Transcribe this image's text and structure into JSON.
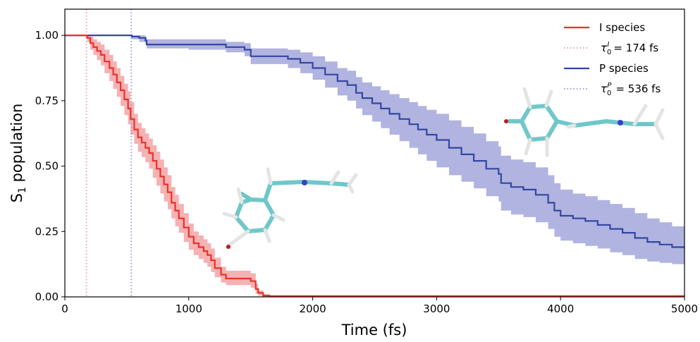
{
  "chart_data": {
    "type": "line",
    "xlabel": "Time (fs)",
    "ylabel_main": "S",
    "ylabel_sub": "1",
    "ylabel_rest": " population",
    "xlim": [
      0,
      5000
    ],
    "ylim": [
      0,
      1.1
    ],
    "xticks": [
      0,
      1000,
      2000,
      3000,
      4000,
      5000
    ],
    "xtick_labels": [
      "0",
      "1000",
      "2000",
      "3000",
      "4000",
      "5000"
    ],
    "yticks": [
      0,
      0.25,
      0.5,
      0.75,
      1.0
    ],
    "ytick_labels": [
      "0.00",
      "0.25",
      "0.50",
      "0.75",
      "1.00"
    ],
    "grid": false,
    "legend_position": "top-right",
    "colors": {
      "i_line": "#e8322a",
      "i_band": "#f4a3a6",
      "i_tau": "#f2a0a0",
      "p_line": "#3447a2",
      "p_band": "#a3a7da",
      "p_tau": "#9a9ede"
    },
    "legend": {
      "i_species": "I species",
      "tau_i_label": "= 174 fs",
      "p_species": "P species",
      "tau_p_label": "= 536 fs"
    },
    "tau_lines": {
      "i": 174,
      "p": 536
    },
    "series": [
      {
        "name": "I species",
        "key": "i",
        "x": [
          0,
          170,
          180,
          205,
          230,
          260,
          290,
          320,
          360,
          390,
          420,
          450,
          480,
          510,
          530,
          560,
          590,
          620,
          650,
          680,
          710,
          740,
          770,
          800,
          830,
          860,
          890,
          920,
          960,
          1000,
          1040,
          1080,
          1120,
          1150,
          1180,
          1210,
          1260,
          1300,
          1400,
          1500,
          1540,
          1560,
          1600,
          1650,
          2000,
          3000,
          4000,
          5000
        ],
        "y": [
          1.0,
          1.0,
          0.99,
          0.97,
          0.955,
          0.94,
          0.925,
          0.9,
          0.875,
          0.85,
          0.82,
          0.79,
          0.755,
          0.72,
          0.68,
          0.64,
          0.61,
          0.59,
          0.57,
          0.55,
          0.52,
          0.49,
          0.46,
          0.43,
          0.4,
          0.36,
          0.33,
          0.3,
          0.265,
          0.23,
          0.205,
          0.19,
          0.175,
          0.16,
          0.14,
          0.11,
          0.085,
          0.07,
          0.07,
          0.06,
          0.03,
          0.015,
          0.005,
          0.003,
          0.003,
          0.003,
          0.003,
          0.003
        ],
        "lower": [
          1.0,
          1.0,
          0.975,
          0.945,
          0.925,
          0.905,
          0.885,
          0.855,
          0.825,
          0.795,
          0.765,
          0.73,
          0.695,
          0.66,
          0.62,
          0.585,
          0.555,
          0.535,
          0.515,
          0.49,
          0.455,
          0.425,
          0.395,
          0.365,
          0.335,
          0.3,
          0.27,
          0.245,
          0.21,
          0.18,
          0.16,
          0.145,
          0.13,
          0.115,
          0.095,
          0.075,
          0.055,
          0.045,
          0.045,
          0.035,
          0.012,
          0.004,
          0.001,
          0.0,
          0.0,
          0.0,
          0.0,
          0.0
        ],
        "upper": [
          1.0,
          1.0,
          1.0,
          0.995,
          0.985,
          0.975,
          0.965,
          0.945,
          0.925,
          0.9,
          0.875,
          0.845,
          0.815,
          0.785,
          0.745,
          0.7,
          0.665,
          0.645,
          0.625,
          0.605,
          0.58,
          0.555,
          0.525,
          0.495,
          0.465,
          0.42,
          0.39,
          0.355,
          0.32,
          0.28,
          0.25,
          0.235,
          0.22,
          0.205,
          0.185,
          0.15,
          0.115,
          0.1,
          0.1,
          0.09,
          0.05,
          0.025,
          0.01,
          0.006,
          0.006,
          0.006,
          0.006,
          0.006
        ]
      },
      {
        "name": "P species",
        "key": "p",
        "x": [
          0,
          500,
          540,
          600,
          650,
          660,
          1000,
          1300,
          1450,
          1500,
          1800,
          1900,
          2000,
          2100,
          2200,
          2280,
          2350,
          2400,
          2480,
          2550,
          2620,
          2700,
          2780,
          2850,
          2920,
          3000,
          3100,
          3200,
          3300,
          3400,
          3500,
          3520,
          3600,
          3700,
          3800,
          3900,
          3950,
          4000,
          4100,
          4200,
          4300,
          4400,
          4500,
          4600,
          4700,
          4800,
          4900,
          5000
        ],
        "y": [
          1.0,
          1.0,
          0.995,
          0.99,
          0.98,
          0.965,
          0.965,
          0.955,
          0.945,
          0.92,
          0.91,
          0.895,
          0.875,
          0.85,
          0.825,
          0.81,
          0.78,
          0.76,
          0.74,
          0.72,
          0.7,
          0.68,
          0.66,
          0.64,
          0.62,
          0.6,
          0.57,
          0.545,
          0.52,
          0.49,
          0.47,
          0.435,
          0.42,
          0.41,
          0.39,
          0.36,
          0.33,
          0.31,
          0.3,
          0.29,
          0.275,
          0.26,
          0.245,
          0.225,
          0.21,
          0.2,
          0.19,
          0.185
        ],
        "lower": [
          1.0,
          1.0,
          0.985,
          0.975,
          0.965,
          0.95,
          0.945,
          0.935,
          0.92,
          0.89,
          0.875,
          0.855,
          0.83,
          0.8,
          0.77,
          0.75,
          0.72,
          0.695,
          0.67,
          0.645,
          0.62,
          0.595,
          0.57,
          0.545,
          0.52,
          0.495,
          0.465,
          0.44,
          0.415,
          0.385,
          0.365,
          0.33,
          0.315,
          0.305,
          0.285,
          0.26,
          0.23,
          0.215,
          0.205,
          0.195,
          0.185,
          0.17,
          0.16,
          0.145,
          0.135,
          0.13,
          0.125,
          0.12
        ],
        "upper": [
          1.0,
          1.0,
          1.0,
          1.0,
          0.995,
          0.985,
          0.985,
          0.975,
          0.97,
          0.95,
          0.945,
          0.935,
          0.92,
          0.9,
          0.875,
          0.865,
          0.84,
          0.82,
          0.805,
          0.79,
          0.775,
          0.76,
          0.745,
          0.73,
          0.715,
          0.7,
          0.675,
          0.65,
          0.625,
          0.595,
          0.575,
          0.54,
          0.525,
          0.515,
          0.495,
          0.465,
          0.435,
          0.41,
          0.395,
          0.385,
          0.37,
          0.355,
          0.34,
          0.32,
          0.3,
          0.285,
          0.27,
          0.26
        ]
      }
    ]
  },
  "molecule_colors": {
    "carbon": "#6fc7c9",
    "carbon_edge": "#3f8f96",
    "hydrogen": "#e4e4e4",
    "nitrogen": "#3a3fc8",
    "oxygen": "#c21b12"
  }
}
